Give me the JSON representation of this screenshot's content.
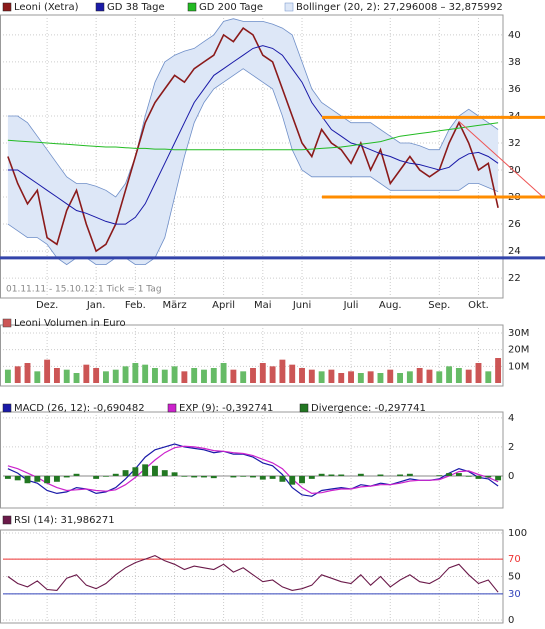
{
  "chart_data": [
    {
      "type": "line",
      "categories": [
        null,
        null,
        null,
        null,
        "Dez.",
        null,
        null,
        null,
        null,
        "Jan.",
        null,
        null,
        null,
        "Feb.",
        null,
        null,
        null,
        "März",
        null,
        null,
        null,
        null,
        "April",
        null,
        null,
        null,
        "Mai",
        null,
        null,
        null,
        "Juni",
        null,
        null,
        null,
        null,
        "Juli",
        null,
        null,
        null,
        "Aug.",
        null,
        null,
        null,
        null,
        "Sep.",
        null,
        null,
        null,
        "Okt.",
        null,
        null
      ],
      "series": [
        {
          "name": "Leoni (Xetra)",
          "color": "#8b1a1a",
          "values": [
            31,
            29,
            27.5,
            28.5,
            25,
            24.5,
            27,
            28.5,
            26,
            24,
            24.5,
            26,
            28.5,
            31,
            33.5,
            35,
            36,
            37,
            36.5,
            37.5,
            38,
            38.5,
            40,
            39.5,
            40.5,
            40,
            38.5,
            38,
            36,
            34,
            32,
            31,
            33,
            32,
            31.5,
            30.5,
            32,
            30,
            31.5,
            29,
            30,
            31,
            30,
            29.5,
            30,
            32,
            33.5,
            32,
            30,
            30.5,
            27.2
          ]
        },
        {
          "name": "GD 38 Tage",
          "color": "#1a1aa8",
          "values": [
            30,
            30,
            29.5,
            29,
            28.5,
            28,
            27.5,
            27,
            26.8,
            26.5,
            26.2,
            26,
            26,
            26.5,
            27.5,
            29,
            30.5,
            32,
            33.5,
            35,
            36,
            37,
            37.5,
            38,
            38.5,
            39,
            39.2,
            39,
            38.5,
            37.5,
            36.5,
            35,
            34,
            33,
            32.5,
            32,
            31.8,
            31.5,
            31.2,
            31,
            30.7,
            30.5,
            30.4,
            30.2,
            30,
            30.2,
            30.8,
            31.2,
            31.3,
            31,
            30.5
          ]
        },
        {
          "name": "GD 200 Tage",
          "color": "#22bb22",
          "values": [
            32.2,
            32.15,
            32.1,
            32.05,
            32,
            31.95,
            31.9,
            31.85,
            31.8,
            31.75,
            31.7,
            31.7,
            31.65,
            31.6,
            31.6,
            31.55,
            31.55,
            31.5,
            31.5,
            31.5,
            31.5,
            31.5,
            31.5,
            31.5,
            31.5,
            31.5,
            31.5,
            31.5,
            31.5,
            31.5,
            31.5,
            31.55,
            31.6,
            31.65,
            31.7,
            31.8,
            31.9,
            32,
            32.1,
            32.3,
            32.5,
            32.6,
            32.7,
            32.8,
            32.9,
            33,
            33.1,
            33.2,
            33.3,
            33.4,
            33.5
          ]
        },
        {
          "name": "Bollinger (20, 2): 27,296008 – 32,875992",
          "color": "#6f8fc8",
          "fill": "#dde7f7",
          "upper": [
            34,
            34,
            33.5,
            32.5,
            31.5,
            30.5,
            29.5,
            29,
            29,
            28.8,
            28.5,
            28,
            29,
            31,
            34,
            36.5,
            38,
            38.5,
            38.8,
            39,
            39.5,
            40,
            41,
            41.2,
            41,
            41,
            41,
            40.8,
            40.5,
            40,
            38,
            36,
            35,
            34.5,
            34,
            33.5,
            33.5,
            33.5,
            33,
            32.5,
            32,
            32,
            31.8,
            31.5,
            31.5,
            33,
            34,
            34.5,
            34,
            33.5,
            33
          ],
          "lower": [
            26,
            25.5,
            25,
            25,
            24.5,
            23.5,
            23,
            23.5,
            23.5,
            23,
            23,
            23.5,
            23.5,
            23,
            23,
            23.5,
            25,
            28,
            31,
            33.5,
            35,
            36,
            36.5,
            37,
            37.5,
            37,
            36.5,
            36,
            34,
            31.5,
            30,
            29.5,
            29.5,
            29.5,
            29.5,
            29.5,
            29.5,
            29.5,
            29,
            28.5,
            28.5,
            28.5,
            28.5,
            28.5,
            28.5,
            28.5,
            28.5,
            29,
            29,
            28.7,
            28.4
          ]
        }
      ],
      "levels": [
        {
          "value": 23.5,
          "color": "#3344aa",
          "partial": false
        },
        {
          "value": 33.9,
          "color": "#ff8c00",
          "partial": true
        },
        {
          "value": 28,
          "color": "#ff8c00",
          "partial": true
        }
      ],
      "trendline": {
        "color": "#ee5555",
        "values": [
          33.6,
          28
        ]
      },
      "annotation": "01.11.11 - 15.10.12   1 Tick = 1 Tag",
      "ylim": [
        20.75,
        41.25
      ],
      "yticks": [
        22,
        24,
        26,
        28,
        30,
        32,
        34,
        36,
        38,
        40
      ],
      "grid": true
    },
    {
      "type": "bar",
      "title": "Leoni Volumen in Euro",
      "up_color": "#66bb66",
      "down_color": "#cc5555",
      "values": [
        8,
        10,
        12,
        7,
        14,
        9,
        8,
        6,
        11,
        9,
        7,
        8,
        10,
        12,
        11,
        9,
        8,
        10,
        7,
        9,
        8,
        9,
        12,
        8,
        7,
        9,
        12,
        10,
        14,
        11,
        9,
        8,
        7,
        8,
        6,
        7,
        6,
        7,
        6,
        8,
        6,
        7,
        9,
        8,
        7,
        10,
        9,
        8,
        12,
        7,
        15
      ],
      "ylim": [
        0,
        33
      ],
      "yticks": [
        {
          "value": 10,
          "label": "10M"
        },
        {
          "value": 20,
          "label": "20M"
        },
        {
          "value": 30,
          "label": "30M"
        }
      ],
      "grid": true
    },
    {
      "type": "macd",
      "series": [
        {
          "name": "MACD (26, 12): -0,690482",
          "color": "#1a1aa8",
          "values": [
            0.5,
            0.2,
            -0.3,
            -0.5,
            -1,
            -1.2,
            -1.1,
            -0.8,
            -0.9,
            -1.2,
            -1.1,
            -0.8,
            -0.2,
            0.5,
            1.3,
            1.8,
            2,
            2.2,
            2,
            1.9,
            1.8,
            1.6,
            1.7,
            1.5,
            1.5,
            1.3,
            0.9,
            0.7,
            0.1,
            -0.8,
            -1.3,
            -1.4,
            -1,
            -0.9,
            -0.8,
            -0.9,
            -0.6,
            -0.7,
            -0.5,
            -0.6,
            -0.4,
            -0.2,
            -0.3,
            -0.3,
            -0.2,
            0.2,
            0.5,
            0.3,
            -0.1,
            -0.2,
            -0.690482
          ]
        },
        {
          "name": "EXP (9): -0,392741",
          "color": "#cc22cc",
          "values": [
            0.7,
            0.5,
            0.2,
            -0.1,
            -0.5,
            -0.8,
            -1,
            -0.95,
            -0.9,
            -1,
            -1.05,
            -0.95,
            -0.6,
            -0.1,
            0.5,
            1.1,
            1.6,
            1.95,
            2.05,
            2,
            1.9,
            1.75,
            1.7,
            1.6,
            1.55,
            1.4,
            1.15,
            0.9,
            0.5,
            -0.2,
            -0.8,
            -1.2,
            -1.15,
            -1,
            -0.9,
            -0.9,
            -0.75,
            -0.7,
            -0.6,
            -0.6,
            -0.5,
            -0.35,
            -0.3,
            -0.3,
            -0.25,
            0,
            0.3,
            0.35,
            0.1,
            -0.1,
            -0.392741
          ]
        },
        {
          "name": "Divergence: -0,297741",
          "color": "#227722",
          "bars": true,
          "values": [
            -0.2,
            -0.3,
            -0.5,
            -0.4,
            -0.5,
            -0.4,
            -0.1,
            0.15,
            0,
            -0.2,
            -0.05,
            0.15,
            0.4,
            0.6,
            0.8,
            0.7,
            0.4,
            0.25,
            -0.05,
            -0.1,
            -0.1,
            -0.15,
            0,
            -0.1,
            -0.05,
            -0.1,
            -0.25,
            -0.2,
            -0.4,
            -0.6,
            -0.5,
            -0.2,
            0.15,
            0.1,
            0.1,
            0,
            0.15,
            0,
            0.1,
            0,
            0.1,
            0.15,
            0,
            0,
            0.05,
            0.2,
            0.2,
            -0.05,
            -0.2,
            -0.1,
            -0.297741
          ]
        }
      ],
      "ylim": [
        -2,
        4.2
      ],
      "yticks": [
        0,
        2,
        4
      ],
      "grid": true
    },
    {
      "type": "rsi",
      "series": [
        {
          "name": "RSI (14): 31,986271",
          "color": "#6b1a4a",
          "values": [
            50,
            42,
            38,
            45,
            35,
            34,
            48,
            52,
            40,
            36,
            42,
            52,
            60,
            66,
            70,
            74,
            68,
            64,
            58,
            62,
            60,
            58,
            64,
            55,
            60,
            52,
            44,
            46,
            38,
            34,
            36,
            40,
            52,
            48,
            44,
            42,
            52,
            40,
            50,
            38,
            46,
            52,
            44,
            42,
            48,
            60,
            64,
            52,
            42,
            46,
            31.986271
          ]
        }
      ],
      "bands": [
        {
          "value": 70,
          "color": "#ee3333"
        },
        {
          "value": 30,
          "color": "#3344bb"
        }
      ],
      "ylim": [
        0,
        100
      ],
      "yticks": [
        0,
        30,
        50,
        70,
        100
      ],
      "grid": true
    }
  ]
}
